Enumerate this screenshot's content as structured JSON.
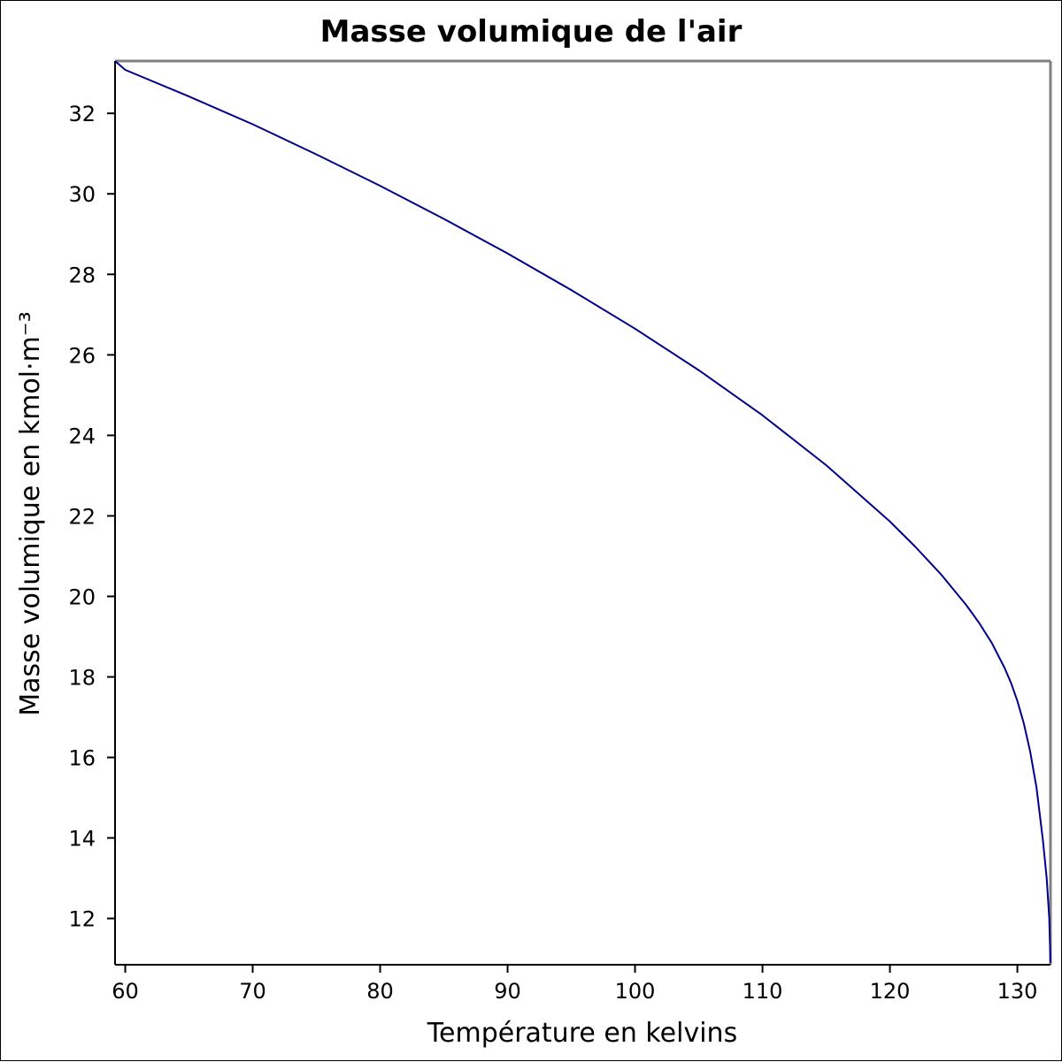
{
  "chart_data": {
    "type": "line",
    "title": "Masse volumique de l'air",
    "xlabel": "Température en kelvins",
    "ylabel": "Masse volumique en kmol·m⁻³",
    "xlim": [
      59.2,
      132.6
    ],
    "ylim": [
      10.85,
      33.3
    ],
    "x_ticks": [
      60,
      70,
      80,
      90,
      100,
      110,
      120,
      130
    ],
    "y_ticks": [
      12,
      14,
      16,
      18,
      20,
      22,
      24,
      26,
      28,
      30,
      32
    ],
    "grid": false,
    "legend": "none",
    "series": [
      {
        "color": "#00008b",
        "x": [
          59.2,
          60,
          65,
          70,
          75,
          80,
          85,
          90,
          95,
          100,
          105,
          110,
          115,
          120,
          122,
          124,
          126,
          127,
          128,
          129,
          129.5,
          130,
          130.5,
          131,
          131.5,
          132,
          132.3,
          132.5,
          132.6
        ],
        "y": [
          33.3,
          33.08,
          32.42,
          31.73,
          30.98,
          30.2,
          29.38,
          28.52,
          27.61,
          26.65,
          25.62,
          24.5,
          23.26,
          21.86,
          21.23,
          20.55,
          19.78,
          19.34,
          18.84,
          18.22,
          17.85,
          17.4,
          16.85,
          16.15,
          15.25,
          13.95,
          13.0,
          12.0,
          10.9
        ]
      }
    ]
  }
}
